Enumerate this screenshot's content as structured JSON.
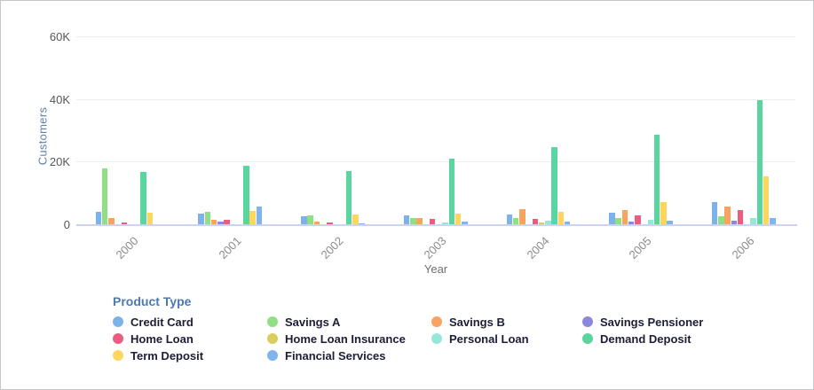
{
  "y_axis": {
    "title": "Customers",
    "tick_labels": [
      "0",
      "20K",
      "40K",
      "60K"
    ],
    "tick_values": [
      0,
      20000,
      40000,
      60000
    ]
  },
  "x_axis": {
    "title": "Year"
  },
  "legend": {
    "title": "Product Type"
  },
  "chart_data": {
    "type": "bar",
    "title": "",
    "xlabel": "Year",
    "ylabel": "Customers",
    "ylim": [
      0,
      60000
    ],
    "yticks": [
      0,
      20000,
      40000,
      60000
    ],
    "grid": true,
    "legend_position": "bottom",
    "categories": [
      "2000",
      "2001",
      "2002",
      "2003",
      "2004",
      "2005",
      "2006"
    ],
    "series": [
      {
        "name": "Credit Card",
        "color": "#7cb2e8",
        "values": [
          4100,
          3300,
          2500,
          2900,
          3100,
          3800,
          7000
        ]
      },
      {
        "name": "Savings A",
        "color": "#8fe084",
        "values": [
          17800,
          3900,
          2800,
          2100,
          2000,
          2000,
          2600
        ]
      },
      {
        "name": "Savings B",
        "color": "#f6a45f",
        "values": [
          1900,
          1400,
          1000,
          2100,
          4800,
          4600,
          5800
        ]
      },
      {
        "name": "Savings Pensioner",
        "color": "#8b87dd",
        "values": [
          0,
          1000,
          0,
          0,
          0,
          800,
          1200
        ]
      },
      {
        "name": "Home Loan",
        "color": "#ec5c80",
        "values": [
          600,
          1300,
          600,
          1600,
          1800,
          2900,
          4600
        ]
      },
      {
        "name": "Home Loan Insurance",
        "color": "#d9cd5c",
        "values": [
          0,
          0,
          0,
          0,
          700,
          0,
          0
        ]
      },
      {
        "name": "Personal Loan",
        "color": "#97e7d8",
        "values": [
          0,
          0,
          0,
          600,
          1100,
          1500,
          2000
        ]
      },
      {
        "name": "Demand Deposit",
        "color": "#59d5a0",
        "values": [
          16800,
          18600,
          16900,
          21000,
          24600,
          28600,
          39500
        ]
      },
      {
        "name": "Term Deposit",
        "color": "#fdd65f",
        "values": [
          3800,
          4200,
          3100,
          3500,
          4100,
          7200,
          15300
        ]
      },
      {
        "name": "Financial Services",
        "color": "#7fb5ed",
        "values": [
          0,
          5800,
          400,
          800,
          800,
          1200,
          2100
        ]
      }
    ]
  },
  "style_colors": {
    "gridline": "#ededee",
    "zero_baseline": "#ccd3ee",
    "y_tick_text": "#55565a",
    "y_axis_title_text": "#5f81aa",
    "x_tick_text": "#8b8b8d",
    "legend_title_text": "#4c78b3",
    "legend_label_text": "#1d1d35"
  }
}
